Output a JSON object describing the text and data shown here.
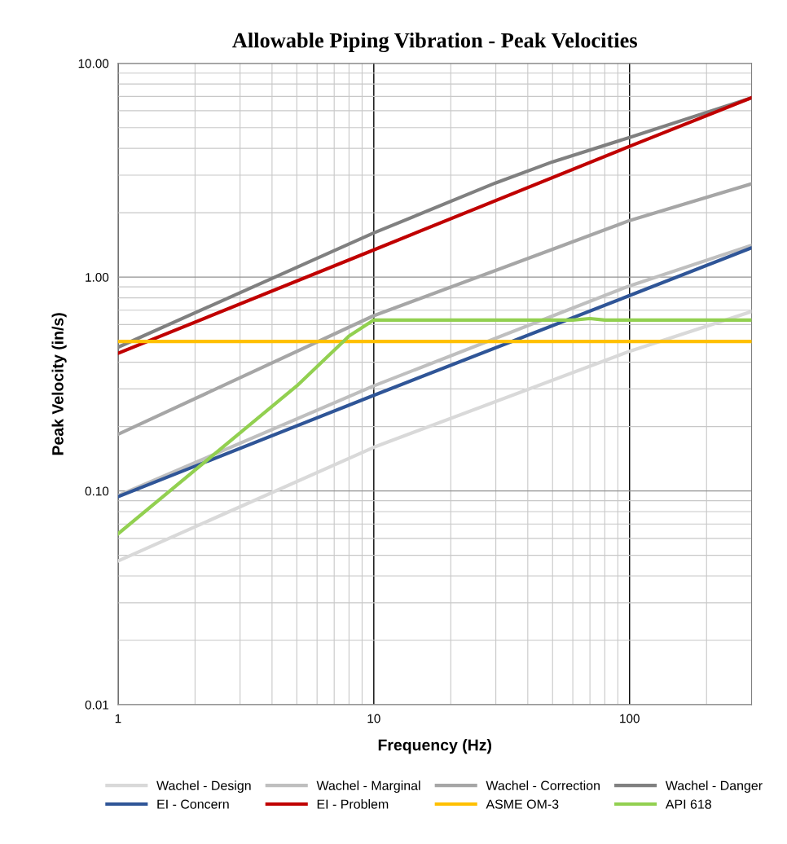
{
  "chart_data": {
    "type": "line",
    "title": "Allowable Piping Vibration - Peak Velocities",
    "xlabel": "Frequency (Hz)",
    "ylabel": "Peak Velocity (in/s)",
    "log": "xy",
    "grid": true,
    "legend": "bottom",
    "marker": "none",
    "line_style": "solid",
    "xlim": [
      1,
      300
    ],
    "ylim": [
      0.01,
      10
    ],
    "xticks": [
      1,
      {
        "value": 2,
        "label": null
      },
      {
        "value": 3,
        "label": null
      },
      {
        "value": 4,
        "label": null
      },
      {
        "value": 5,
        "label": null
      },
      {
        "value": 6,
        "label": null
      },
      {
        "value": 7,
        "label": null
      },
      {
        "value": 8,
        "label": null
      },
      {
        "value": 9,
        "label": null
      },
      10,
      {
        "value": 20,
        "label": null
      },
      {
        "value": 30,
        "label": null
      },
      {
        "value": 40,
        "label": null
      },
      {
        "value": 50,
        "label": null
      },
      {
        "value": 60,
        "label": null
      },
      {
        "value": 70,
        "label": null
      },
      {
        "value": 80,
        "label": null
      },
      {
        "value": 90,
        "label": null
      },
      100,
      {
        "value": 200,
        "label": null
      },
      {
        "value": 300,
        "label": null
      }
    ],
    "yticks": [
      {
        "value": 0.01,
        "label": "0.01"
      },
      {
        "value": 0.02,
        "label": null
      },
      {
        "value": 0.03,
        "label": null
      },
      {
        "value": 0.04,
        "label": null
      },
      {
        "value": 0.05,
        "label": null
      },
      {
        "value": 0.06,
        "label": null
      },
      {
        "value": 0.07,
        "label": null
      },
      {
        "value": 0.08,
        "label": null
      },
      {
        "value": 0.09,
        "label": null
      },
      {
        "value": 0.1,
        "label": "0.10"
      },
      {
        "value": 0.2,
        "label": null
      },
      {
        "value": 0.3,
        "label": null
      },
      {
        "value": 0.4,
        "label": null
      },
      {
        "value": 0.5,
        "label": null
      },
      {
        "value": 0.6,
        "label": null
      },
      {
        "value": 0.7,
        "label": null
      },
      {
        "value": 0.8,
        "label": null
      },
      {
        "value": 0.9,
        "label": null
      },
      {
        "value": 1,
        "label": "1.00"
      },
      {
        "value": 2,
        "label": null
      },
      {
        "value": 3,
        "label": null
      },
      {
        "value": 4,
        "label": null
      },
      {
        "value": 5,
        "label": null
      },
      {
        "value": 6,
        "label": null
      },
      {
        "value": 7,
        "label": null
      },
      {
        "value": 8,
        "label": null
      },
      {
        "value": 9,
        "label": null
      },
      {
        "value": 10,
        "label": "10.00"
      }
    ],
    "series": [
      {
        "name": "Wachel - Design",
        "color": "#d9d9d9",
        "x": [
          1,
          10,
          100,
          300
        ],
        "values": [
          0.047,
          0.16,
          0.45,
          0.69
        ]
      },
      {
        "name": "Wachel - Marginal",
        "color": "#bfbfbf",
        "x": [
          1,
          10,
          100,
          300
        ],
        "values": [
          0.095,
          0.31,
          0.91,
          1.41
        ]
      },
      {
        "name": "Wachel - Correction",
        "color": "#a6a6a6",
        "x": [
          1,
          10,
          50,
          100,
          300
        ],
        "values": [
          0.184,
          0.66,
          1.35,
          1.84,
          2.73
        ]
      },
      {
        "name": "Wachel - Danger",
        "color": "#808080",
        "x": [
          1,
          10,
          30,
          50,
          100,
          300
        ],
        "values": [
          0.47,
          1.61,
          2.76,
          3.46,
          4.5,
          6.9
        ]
      },
      {
        "name": "EI - Concern",
        "color": "#2f5597",
        "x": [
          1,
          10,
          100,
          300
        ],
        "values": [
          0.094,
          0.28,
          0.82,
          1.37
        ]
      },
      {
        "name": "EI - Problem",
        "color": "#c00000",
        "x": [
          1,
          10,
          100,
          300
        ],
        "values": [
          0.44,
          1.34,
          4.09,
          6.9
        ]
      },
      {
        "name": "ASME OM-3",
        "color": "#ffc000",
        "x": [
          1,
          300
        ],
        "values": [
          0.5,
          0.5
        ]
      },
      {
        "name": "API 618",
        "color": "#92d050",
        "x": [
          1,
          5,
          8,
          10,
          60,
          70,
          80,
          300
        ],
        "values": [
          0.063,
          0.31,
          0.53,
          0.63,
          0.63,
          0.64,
          0.63,
          0.63
        ]
      }
    ]
  }
}
